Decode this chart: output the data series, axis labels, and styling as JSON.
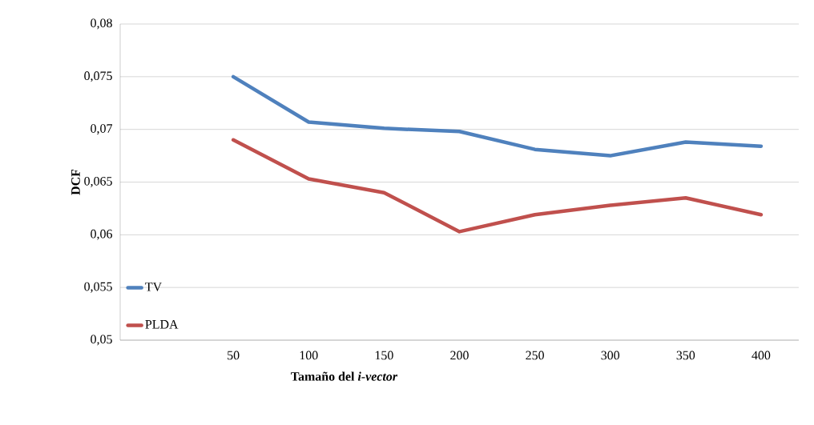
{
  "chart_data": {
    "type": "line",
    "xlabel": "Tamaño del *i-vector*",
    "ylabel": "DCF",
    "categories": [
      null,
      "50",
      "100",
      "150",
      "200",
      "250",
      "300",
      "350",
      "400"
    ],
    "series": [
      {
        "name": "TV",
        "color": "#4f81bd",
        "values": [
          null,
          0.075,
          0.0707,
          0.0701,
          0.0698,
          0.0681,
          0.0675,
          0.0688,
          0.0684
        ]
      },
      {
        "name": "PLDA",
        "color": "#c0504d",
        "values": [
          null,
          0.069,
          0.0653,
          0.064,
          0.0603,
          0.0619,
          0.0628,
          0.0635,
          0.0619
        ]
      }
    ],
    "ylim": [
      0.05,
      0.08
    ],
    "yticks": [
      {
        "value": 0.05,
        "label": "0,05"
      },
      {
        "value": 0.055,
        "label": "0,055"
      },
      {
        "value": 0.06,
        "label": "0,06"
      },
      {
        "value": 0.065,
        "label": "0,065"
      },
      {
        "value": 0.07,
        "label": "0,07"
      },
      {
        "value": 0.075,
        "label": "0,075"
      },
      {
        "value": 0.08,
        "label": "0,08"
      }
    ],
    "grid": "y",
    "legend": "bottom left",
    "marker": "none"
  }
}
